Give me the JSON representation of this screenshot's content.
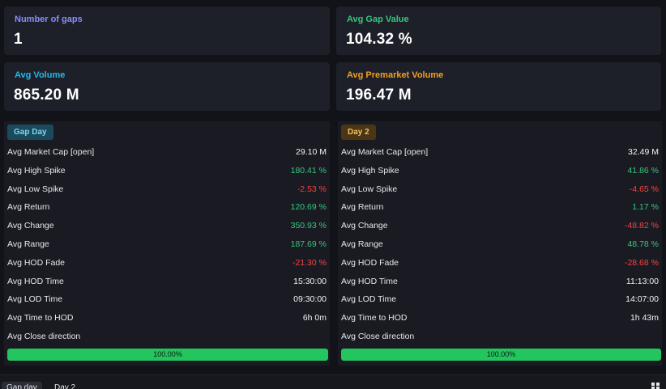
{
  "summary": {
    "gaps": {
      "label": "Number of gaps",
      "value": "1",
      "color": "#8b8cf8"
    },
    "gap_value": {
      "label": "Avg Gap Value",
      "value": "104.32 %",
      "color": "#34c77b"
    },
    "volume": {
      "label": "Avg Volume",
      "value": "865.20 M",
      "color": "#22b8e8"
    },
    "premarket": {
      "label": "Avg Premarket Volume",
      "value": "196.47 M",
      "color": "#f0a020"
    }
  },
  "gap_day": {
    "title": "Gap Day",
    "badge_bg": "#1a4a5c",
    "badge_color": "#7fd6f0",
    "rows": [
      {
        "label": "Avg Market Cap [open]",
        "value": "29.10 M",
        "tone": "white"
      },
      {
        "label": "Avg High Spike",
        "value": "180.41 %",
        "tone": "green"
      },
      {
        "label": "Avg Low Spike",
        "value": "-2.53 %",
        "tone": "red"
      },
      {
        "label": "Avg Return",
        "value": "120.69 %",
        "tone": "green"
      },
      {
        "label": "Avg Change",
        "value": "350.93 %",
        "tone": "green"
      },
      {
        "label": "Avg Range",
        "value": "187.69 %",
        "tone": "green"
      },
      {
        "label": "Avg HOD Fade",
        "value": "-21.30 %",
        "tone": "red"
      },
      {
        "label": "Avg HOD Time",
        "value": "15:30:00",
        "tone": "white"
      },
      {
        "label": "Avg LOD Time",
        "value": "09:30:00",
        "tone": "white"
      },
      {
        "label": "Avg Time to HOD",
        "value": "6h 0m",
        "tone": "white"
      },
      {
        "label": "Avg Close direction",
        "value": "",
        "tone": "white"
      }
    ],
    "close_direction": {
      "label": "100.00%",
      "fraction": 1.0
    }
  },
  "day2": {
    "title": "Day 2",
    "badge_bg": "#4a3515",
    "badge_color": "#f4c066",
    "rows": [
      {
        "label": "Avg Market Cap [open]",
        "value": "32.49 M",
        "tone": "white"
      },
      {
        "label": "Avg High Spike",
        "value": "41.86 %",
        "tone": "green"
      },
      {
        "label": "Avg Low Spike",
        "value": "-4.65 %",
        "tone": "red"
      },
      {
        "label": "Avg Return",
        "value": "1.17 %",
        "tone": "green"
      },
      {
        "label": "Avg Change",
        "value": "-48.82 %",
        "tone": "red"
      },
      {
        "label": "Avg Range",
        "value": "48.78 %",
        "tone": "green"
      },
      {
        "label": "Avg HOD Fade",
        "value": "-28.68 %",
        "tone": "red"
      },
      {
        "label": "Avg HOD Time",
        "value": "11:13:00",
        "tone": "white"
      },
      {
        "label": "Avg LOD Time",
        "value": "14:07:00",
        "tone": "white"
      },
      {
        "label": "Avg Time to HOD",
        "value": "1h 43m",
        "tone": "white"
      },
      {
        "label": "Avg Close direction",
        "value": "",
        "tone": "white"
      }
    ],
    "close_direction": {
      "label": "100.00%",
      "fraction": 1.0
    }
  },
  "tabs": [
    {
      "label": "Gap day",
      "active": true
    },
    {
      "label": "Day 2",
      "active": false
    }
  ],
  "layout_icon": "grid-layout-icon"
}
